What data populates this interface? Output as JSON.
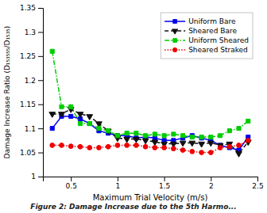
{
  "chart_data": {
    "type": "line",
    "xlabel": "Maximum Trial Velocity (m/s)",
    "ylabel": "Damage Increase Ratio (D₁₅₃₅₅₅/D₁₅₃₅)",
    "caption": "Figure 2: Damage Increase due to the 5th Harmo...",
    "x": [
      0.3,
      0.4,
      0.5,
      0.6,
      0.7,
      0.8,
      0.9,
      1.0,
      1.1,
      1.2,
      1.3,
      1.4,
      1.5,
      1.6,
      1.7,
      1.8,
      1.9,
      2.0,
      2.1,
      2.2,
      2.3,
      2.4
    ],
    "xlim": [
      0.2,
      2.5
    ],
    "ylim": [
      1.0,
      1.35
    ],
    "xticks": [
      0.5,
      1,
      1.5,
      2,
      2.5
    ],
    "yticks": [
      1,
      1.05,
      1.1,
      1.15,
      1.2,
      1.25,
      1.3,
      1.35
    ],
    "grid": false,
    "legend": "upper right",
    "series": [
      {
        "name": "Uniform Bare",
        "color": "#0000ee",
        "marker": "square",
        "line_style": "solid",
        "values": [
          1.1,
          1.125,
          1.125,
          1.12,
          1.11,
          1.095,
          1.09,
          1.085,
          1.085,
          1.08,
          1.082,
          1.08,
          1.075,
          1.075,
          1.08,
          1.085,
          1.08,
          1.075,
          1.065,
          1.06,
          1.055,
          1.082
        ]
      },
      {
        "name": "Sheared Bare",
        "color": "#111111",
        "marker": "triangle-down",
        "line_style": "dashed",
        "values": [
          1.13,
          1.13,
          1.14,
          1.13,
          1.125,
          1.11,
          1.095,
          1.08,
          1.078,
          1.078,
          1.075,
          1.072,
          1.068,
          1.068,
          1.07,
          1.07,
          1.068,
          1.07,
          1.065,
          1.068,
          1.048,
          1.072
        ]
      },
      {
        "name": "Uniform Sheared",
        "color": "#00cc00",
        "marker": "square",
        "line_style": "dashdot",
        "values": [
          1.26,
          1.145,
          1.145,
          1.11,
          1.11,
          1.1,
          1.095,
          1.085,
          1.09,
          1.09,
          1.085,
          1.088,
          1.085,
          1.088,
          1.085,
          1.082,
          1.082,
          1.082,
          1.085,
          1.095,
          1.1,
          1.115
        ]
      },
      {
        "name": "Sheared Straked",
        "color": "#ee0000",
        "marker": "circle",
        "line_style": "dotted",
        "values": [
          1.065,
          1.065,
          1.063,
          1.062,
          1.06,
          1.06,
          1.062,
          1.065,
          1.065,
          1.065,
          1.062,
          1.06,
          1.06,
          1.058,
          1.055,
          1.052,
          1.05,
          1.05,
          1.06,
          1.062,
          1.065,
          1.075
        ]
      }
    ]
  }
}
